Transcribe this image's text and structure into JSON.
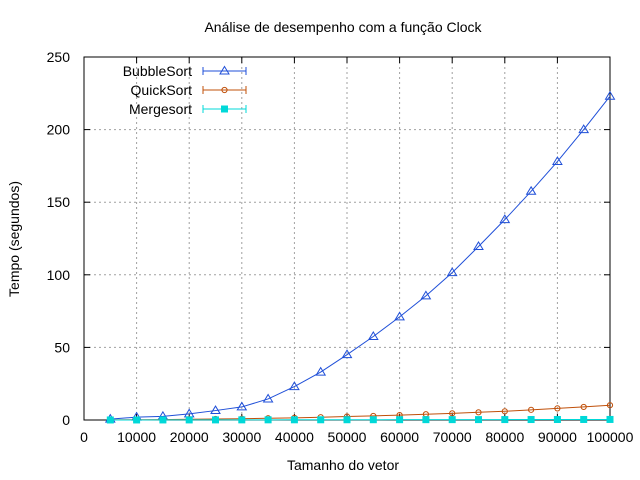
{
  "chart_data": {
    "type": "line",
    "title": "Análise de desempenho com a função Clock",
    "xlabel": "Tamanho do vetor",
    "ylabel": "Tempo (segundos)",
    "xlim": [
      0,
      100000
    ],
    "ylim": [
      0,
      250
    ],
    "xticks": [
      0,
      10000,
      20000,
      30000,
      40000,
      50000,
      60000,
      70000,
      80000,
      90000,
      100000
    ],
    "yticks": [
      0,
      50,
      100,
      150,
      200,
      250
    ],
    "grid": true,
    "legend_position": "top-left",
    "x": [
      5000,
      10000,
      15000,
      20000,
      25000,
      30000,
      35000,
      40000,
      45000,
      50000,
      55000,
      60000,
      65000,
      70000,
      75000,
      80000,
      85000,
      90000,
      95000,
      100000
    ],
    "series": [
      {
        "name": "BubbleSort",
        "color": "#1f4fd8",
        "marker": "triangle",
        "values": [
          0.6,
          2.0,
          2.5,
          4.2,
          6.5,
          9.0,
          14.5,
          23.0,
          33.0,
          45.0,
          57.5,
          71.0,
          85.5,
          101.5,
          119.5,
          138.0,
          157.5,
          178.0,
          200.0,
          223.0
        ]
      },
      {
        "name": "QuickSort",
        "color": "#c0500a",
        "marker": "circle",
        "values": [
          0.1,
          0.2,
          0.3,
          0.5,
          0.7,
          0.9,
          1.2,
          1.5,
          1.9,
          2.4,
          2.8,
          3.4,
          4.0,
          4.6,
          5.3,
          6.0,
          7.0,
          8.0,
          9.0,
          10.2
        ]
      },
      {
        "name": "Mergesort",
        "color": "#00d8d8",
        "marker": "square",
        "values": [
          0.02,
          0.03,
          0.05,
          0.06,
          0.08,
          0.1,
          0.12,
          0.14,
          0.16,
          0.18,
          0.2,
          0.22,
          0.24,
          0.26,
          0.28,
          0.3,
          0.32,
          0.34,
          0.36,
          0.38
        ]
      }
    ]
  }
}
